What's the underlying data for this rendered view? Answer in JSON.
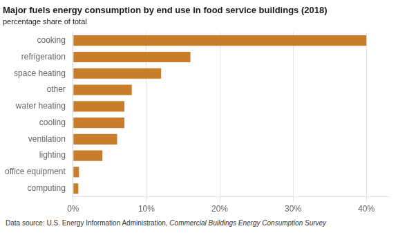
{
  "chart_data": {
    "type": "bar",
    "orientation": "horizontal",
    "title": "Major fuels energy consumption by end use in food service buildings (2018)",
    "subtitle": "percentage share of total",
    "categories": [
      "cooking",
      "refrigeration",
      "space heating",
      "other",
      "water heating",
      "cooling",
      "ventilation",
      "lighting",
      "office equipment",
      "computing"
    ],
    "values": [
      40,
      16,
      12,
      8,
      7,
      7,
      6,
      4,
      0.8,
      0.7
    ],
    "color": "#C87D2A",
    "xlim": [
      0,
      43
    ],
    "xticks": [
      {
        "value": 0,
        "label": "0%"
      },
      {
        "value": 10,
        "label": "10%"
      },
      {
        "value": 20,
        "label": "20%"
      },
      {
        "value": 30,
        "label": "30%"
      },
      {
        "value": 40,
        "label": "40%"
      }
    ],
    "grid": true,
    "footer": [
      "Data source: U.S. Energy Information Administration, ",
      "Commercial Buildings Energy Consumption Survey"
    ]
  }
}
